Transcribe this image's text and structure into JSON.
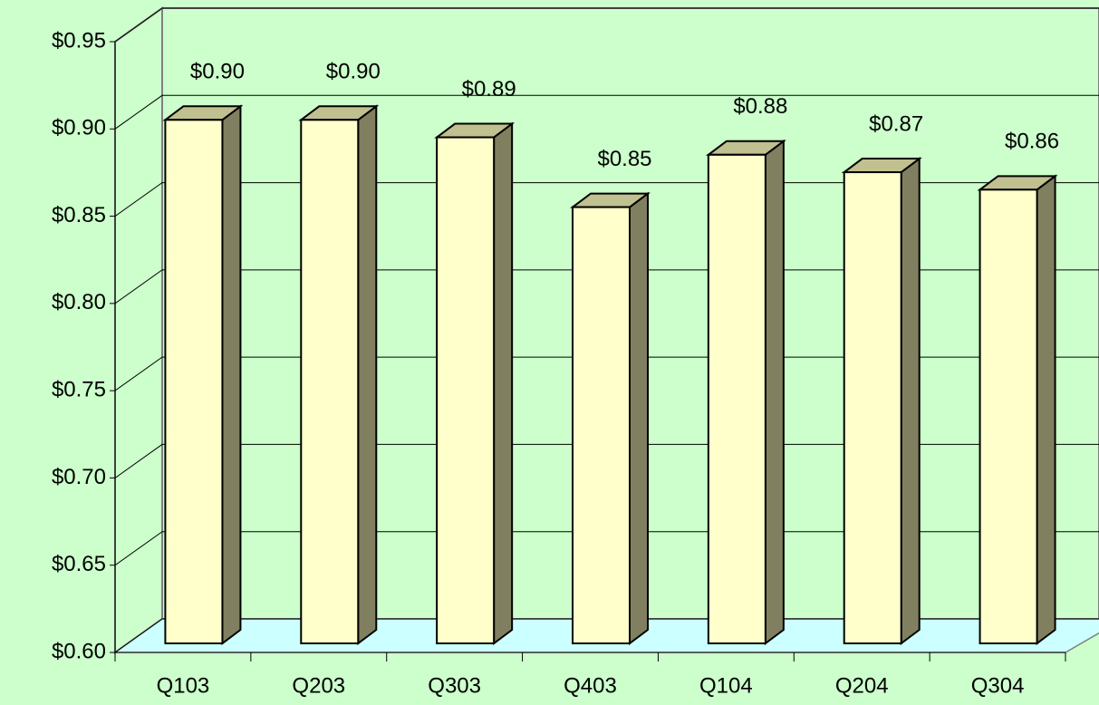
{
  "chart_data": {
    "type": "bar",
    "categories": [
      "Q103",
      "Q203",
      "Q303",
      "Q403",
      "Q104",
      "Q204",
      "Q304"
    ],
    "values": [
      0.9,
      0.9,
      0.89,
      0.85,
      0.88,
      0.87,
      0.86
    ],
    "value_labels": [
      "$0.90",
      "$0.90",
      "$0.89",
      "$0.85",
      "$0.88",
      "$0.87",
      "$0.86"
    ],
    "color": "#ffffcc",
    "ylim": [
      0.6,
      0.95
    ],
    "yticks": [
      {
        "value": 0.6,
        "label": "$0.60"
      },
      {
        "value": 0.65,
        "label": "$0.65"
      },
      {
        "value": 0.7,
        "label": "$0.70"
      },
      {
        "value": 0.75,
        "label": "$0.75"
      },
      {
        "value": 0.8,
        "label": "$0.80"
      },
      {
        "value": 0.85,
        "label": "$0.85"
      },
      {
        "value": 0.9,
        "label": "$0.90"
      },
      {
        "value": 0.95,
        "label": "$0.95"
      }
    ],
    "grid": true
  }
}
